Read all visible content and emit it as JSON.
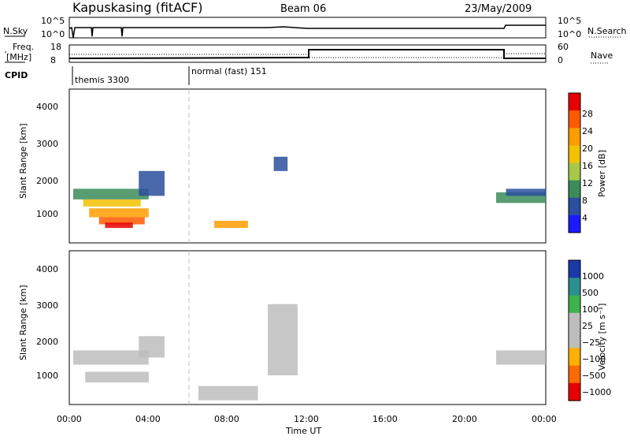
{
  "header": {
    "station": "Kapuskasing (fitACF)",
    "beam": "Beam 06",
    "date": "23/May/2009"
  },
  "top_panels": {
    "nsky_label": "N.Sky",
    "nsky_ticks": [
      "10^5",
      "10^0"
    ],
    "nsearch_label": "N.Search",
    "nsearch_ticks": [
      "10^5",
      "10^0"
    ],
    "freq_label_1": "Freq.",
    "freq_label_2": "[MHz]",
    "freq_ticks": [
      "18",
      "8"
    ],
    "nave_label": "Nave",
    "nave_ticks": [
      "60",
      "0"
    ],
    "cpid_label": "CPID",
    "cpid_segments": [
      "themis 3300",
      "normal (fast) 151"
    ]
  },
  "x_axis": {
    "label": "Time UT",
    "ticks": [
      "00:00",
      "04:00",
      "08:00",
      "12:00",
      "16:00",
      "20:00",
      "00:00"
    ]
  },
  "colors": {
    "frame": "#000000",
    "divider": "#bdbdbd",
    "ground_scatter": "#bdbdbd"
  },
  "chart_data": [
    {
      "type": "heatmap",
      "title": "Power",
      "ylabel": "Slant Range [km]",
      "xlabel": "",
      "x_range_hours": [
        0,
        24
      ],
      "ylim": [
        180,
        4500
      ],
      "y_ticks": [
        "4000",
        "3000",
        "2000",
        "1000"
      ],
      "colorbar_label": "Power [dB]",
      "colorbar_ticks": [
        "28",
        "24",
        "20",
        "16",
        "12",
        "8",
        "4"
      ],
      "colorbar_colors": [
        "#e60000",
        "#ff5a00",
        "#ff9c00",
        "#f2c200",
        "#a8c84a",
        "#3c8c5a",
        "#2a4f9e",
        "#1a1aff"
      ],
      "patches": [
        {
          "x": [
            0.2,
            4.0
          ],
          "y": [
            1400,
            1700
          ],
          "color": "#3c8c5a"
        },
        {
          "x": [
            0.7,
            3.6
          ],
          "y": [
            1200,
            1400
          ],
          "color": "#f2c200"
        },
        {
          "x": [
            1.0,
            4.0
          ],
          "y": [
            900,
            1150
          ],
          "color": "#ff9c00"
        },
        {
          "x": [
            1.5,
            3.8
          ],
          "y": [
            700,
            900
          ],
          "color": "#ff5a00"
        },
        {
          "x": [
            1.8,
            3.2
          ],
          "y": [
            600,
            750
          ],
          "color": "#e60000"
        },
        {
          "x": [
            3.5,
            4.8
          ],
          "y": [
            1500,
            2200
          ],
          "color": "#2a4f9e"
        },
        {
          "x": [
            7.3,
            9.0
          ],
          "y": [
            600,
            800
          ],
          "color": "#ff9c00"
        },
        {
          "x": [
            10.3,
            11.0
          ],
          "y": [
            2200,
            2600
          ],
          "color": "#2a4f9e"
        },
        {
          "x": [
            21.5,
            24.0
          ],
          "y": [
            1300,
            1600
          ],
          "color": "#3c8c5a"
        },
        {
          "x": [
            22.0,
            24.0
          ],
          "y": [
            1500,
            1700
          ],
          "color": "#2a4f9e"
        }
      ]
    },
    {
      "type": "heatmap",
      "title": "Velocity",
      "ylabel": "Slant Range [km]",
      "xlabel": "Time UT",
      "x_range_hours": [
        0,
        24
      ],
      "ylim": [
        180,
        4500
      ],
      "y_ticks": [
        "4000",
        "3000",
        "2000",
        "1000"
      ],
      "colorbar_label": "Velocity [m s⁻¹]",
      "colorbar_ticks": [
        "1000",
        "500",
        "100",
        "25",
        "−25",
        "−100",
        "−500",
        "−1000"
      ],
      "colorbar_colors": [
        "#1a3aa8",
        "#2a8f8f",
        "#3cb44b",
        "#bdbdbd",
        "#bdbdbd",
        "#ffb000",
        "#ff6a00",
        "#e60000"
      ],
      "patches": [
        {
          "x": [
            0.2,
            4.0
          ],
          "y": [
            1300,
            1700
          ],
          "color": "#bdbdbd"
        },
        {
          "x": [
            0.8,
            4.0
          ],
          "y": [
            800,
            1100
          ],
          "color": "#bdbdbd"
        },
        {
          "x": [
            3.5,
            4.8
          ],
          "y": [
            1500,
            2100
          ],
          "color": "#bdbdbd"
        },
        {
          "x": [
            6.5,
            9.5
          ],
          "y": [
            300,
            700
          ],
          "color": "#bdbdbd"
        },
        {
          "x": [
            10.0,
            11.5
          ],
          "y": [
            1000,
            3000
          ],
          "color": "#bdbdbd"
        },
        {
          "x": [
            21.5,
            24.0
          ],
          "y": [
            1300,
            1700
          ],
          "color": "#bdbdbd"
        }
      ]
    }
  ]
}
